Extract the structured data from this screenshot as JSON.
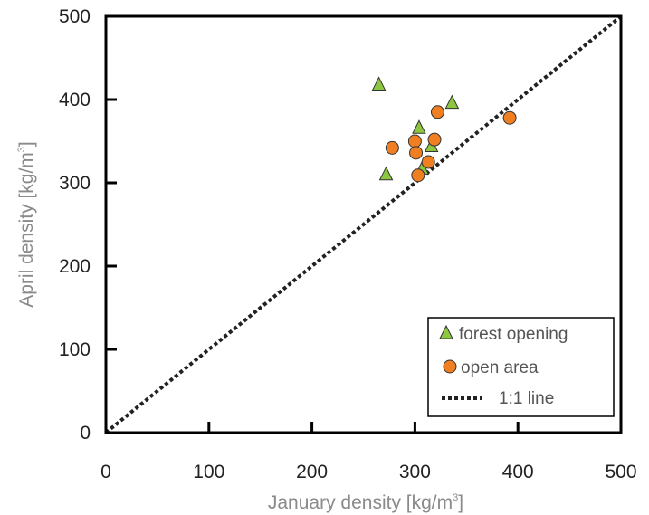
{
  "chart_data": {
    "type": "scatter",
    "title": "",
    "xlabel": {
      "main": "January density [kg/m",
      "sup": "3",
      "close": "]"
    },
    "ylabel": {
      "main": "April density [kg/m",
      "sup": "3",
      "close": "]"
    },
    "xlim": [
      0,
      500
    ],
    "ylim": [
      0,
      500
    ],
    "xticks": [
      "0",
      "100",
      "200",
      "300",
      "400",
      "500"
    ],
    "yticks": [
      "0",
      "100",
      "200",
      "300",
      "400",
      "500"
    ],
    "grid": false,
    "legend_position": "bottom-right",
    "series": [
      {
        "name": "forest opening",
        "marker": "triangle",
        "color": "#8dc63f",
        "points": [
          {
            "x": 265,
            "y": 418
          },
          {
            "x": 336,
            "y": 396
          },
          {
            "x": 304,
            "y": 366
          },
          {
            "x": 316,
            "y": 344
          },
          {
            "x": 272,
            "y": 310
          },
          {
            "x": 307,
            "y": 317
          }
        ]
      },
      {
        "name": "open area",
        "marker": "circle",
        "color": "#f07f22",
        "points": [
          {
            "x": 322,
            "y": 385
          },
          {
            "x": 392,
            "y": 378
          },
          {
            "x": 300,
            "y": 350
          },
          {
            "x": 319,
            "y": 352
          },
          {
            "x": 278,
            "y": 342
          },
          {
            "x": 301,
            "y": 336
          },
          {
            "x": 313,
            "y": 325
          },
          {
            "x": 303,
            "y": 309
          }
        ]
      }
    ],
    "reference_line": {
      "name": "1:1 line",
      "from": [
        0,
        0
      ],
      "to": [
        500,
        500
      ]
    }
  }
}
